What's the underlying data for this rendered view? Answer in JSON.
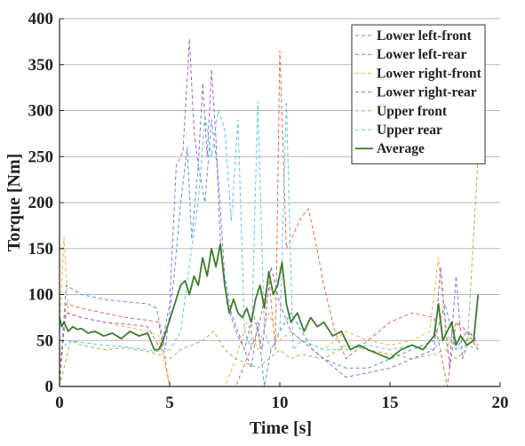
{
  "chart_data": {
    "type": "line",
    "title": "",
    "xlabel": "Time [s]",
    "ylabel": "Torque [Nm]",
    "xlim": [
      0,
      20
    ],
    "ylim": [
      0,
      400
    ],
    "x_ticks": [
      0,
      5,
      10,
      15,
      20
    ],
    "y_ticks": [
      0,
      50,
      100,
      150,
      200,
      250,
      300,
      350,
      400
    ],
    "x_tick_labels": [
      "0",
      "5",
      "10",
      "15",
      "20"
    ],
    "y_tick_labels": [
      "0",
      "50",
      "100",
      "150",
      "200",
      "250",
      "300",
      "350",
      "400"
    ],
    "grid": "horizontal",
    "legend_position": "top-right",
    "series": [
      {
        "name": "Lower left-front",
        "color": "#5b8fd9",
        "dashed": true,
        "x": [
          0,
          0.3,
          1,
          2,
          3,
          4,
          4.4,
          4.8,
          5.2,
          5.5,
          5.8,
          6.0,
          6.3,
          6.6,
          6.9,
          7.2,
          7.5,
          7.8,
          8.1,
          8.4,
          8.7,
          9.0,
          9.3,
          9.6,
          10.0,
          10.5,
          11.0,
          11.5,
          12.0,
          12.5,
          13,
          14,
          15,
          16,
          17,
          17.5,
          18,
          18.5,
          19
        ],
        "y": [
          0,
          110,
          100,
          95,
          92,
          90,
          85,
          40,
          120,
          200,
          260,
          160,
          240,
          200,
          290,
          230,
          120,
          80,
          60,
          40,
          20,
          70,
          0,
          40,
          60,
          80,
          60,
          40,
          30,
          25,
          20,
          20,
          30,
          40,
          50,
          90,
          40,
          60,
          50
        ]
      },
      {
        "name": "Lower left-rear",
        "color": "#e0694a",
        "dashed": true,
        "x": [
          0,
          0.3,
          1,
          2,
          3,
          4,
          4.5,
          5,
          5.5,
          6,
          6.5,
          7,
          7.5,
          8,
          8.5,
          9,
          9.5,
          9.8,
          10.0,
          10.3,
          10.7,
          11.0,
          11.3,
          11.6,
          12,
          12.5,
          13,
          14,
          15,
          16,
          17,
          17.6,
          18,
          18.5,
          19
        ],
        "y": [
          0,
          90,
          85,
          80,
          75,
          72,
          70,
          0,
          0,
          0,
          0,
          0,
          0,
          0,
          30,
          60,
          120,
          40,
          365,
          150,
          170,
          185,
          193,
          160,
          110,
          60,
          30,
          50,
          70,
          80,
          75,
          0,
          70,
          60,
          40
        ]
      },
      {
        "name": "Lower right-front",
        "color": "#e8b93a",
        "dashed": true,
        "x": [
          0,
          0.2,
          0.4,
          1,
          2,
          3,
          4,
          4.5,
          5,
          5.5,
          6,
          6.5,
          7,
          7.5,
          8,
          8.5,
          9,
          9.5,
          10,
          10.5,
          11,
          12,
          13,
          14,
          15,
          16,
          16.8,
          17.2,
          17.6,
          18,
          18.4,
          18.8,
          19
        ],
        "y": [
          60,
          162,
          80,
          75,
          70,
          65,
          60,
          55,
          0,
          0,
          0,
          0,
          0,
          0,
          30,
          70,
          40,
          80,
          50,
          60,
          50,
          40,
          60,
          50,
          45,
          50,
          60,
          140,
          40,
          70,
          55,
          50,
          40
        ]
      },
      {
        "name": "Lower right-rear",
        "color": "#9b66c9",
        "dashed": true,
        "x": [
          0,
          0.3,
          1,
          2,
          3,
          4,
          4.6,
          5.0,
          5.3,
          5.6,
          5.9,
          6.1,
          6.3,
          6.5,
          6.7,
          6.9,
          7.1,
          7.3,
          7.6,
          8.0,
          8.4,
          8.8,
          9.2,
          9.6,
          10.0,
          10.5,
          11,
          11.5,
          12,
          12.5,
          13,
          14,
          15,
          16,
          17,
          17.3,
          17.7,
          18.0,
          18.3,
          18.6,
          19
        ],
        "y": [
          20,
          80,
          75,
          70,
          68,
          65,
          40,
          90,
          240,
          255,
          378,
          280,
          240,
          330,
          250,
          345,
          270,
          160,
          90,
          60,
          40,
          80,
          40,
          130,
          90,
          60,
          50,
          40,
          30,
          20,
          10,
          15,
          20,
          30,
          40,
          130,
          20,
          120,
          30,
          60,
          45
        ]
      },
      {
        "name": "Upper front",
        "color": "#8fbf55",
        "dashed": true,
        "x": [
          0,
          0.5,
          1,
          2,
          3,
          4,
          4.5,
          5,
          5.5,
          6,
          6.5,
          7,
          7.5,
          8,
          8.5,
          9,
          9.5,
          10,
          10.5,
          11,
          12,
          13,
          14,
          15,
          16,
          17,
          17.5,
          18,
          18.5,
          19
        ],
        "y": [
          0,
          50,
          45,
          40,
          42,
          38,
          35,
          30,
          40,
          45,
          50,
          60,
          40,
          30,
          25,
          20,
          30,
          40,
          30,
          35,
          30,
          45,
          40,
          35,
          30,
          35,
          40,
          30,
          40,
          250
        ]
      },
      {
        "name": "Upper rear",
        "color": "#5fc9d9",
        "dashed": true,
        "x": [
          0,
          0.5,
          1,
          2,
          3,
          4,
          4.5,
          5,
          5.5,
          6,
          6.3,
          6.6,
          6.9,
          7.2,
          7.5,
          7.8,
          8.1,
          8.4,
          8.7,
          9.0,
          9.3,
          9.6,
          10.0,
          10.3,
          10.6,
          11.0,
          11.5,
          12,
          13,
          14,
          15,
          16,
          17,
          17.5,
          18,
          18.5,
          19
        ],
        "y": [
          40,
          50,
          48,
          45,
          43,
          40,
          38,
          40,
          60,
          150,
          200,
          295,
          250,
          300,
          280,
          180,
          290,
          60,
          40,
          310,
          60,
          40,
          60,
          310,
          40,
          50,
          45,
          40,
          40,
          45,
          40,
          45,
          40,
          60,
          40,
          45,
          40
        ]
      },
      {
        "name": "Average",
        "color": "#3e7d2b",
        "dashed": false,
        "x": [
          0,
          0.1,
          0.2,
          0.4,
          0.6,
          0.8,
          1.0,
          1.3,
          1.6,
          2.0,
          2.4,
          2.8,
          3.2,
          3.6,
          4.0,
          4.3,
          4.5,
          4.7,
          4.9,
          5.1,
          5.3,
          5.5,
          5.7,
          5.9,
          6.1,
          6.3,
          6.5,
          6.7,
          6.9,
          7.1,
          7.3,
          7.5,
          7.7,
          7.9,
          8.1,
          8.3,
          8.5,
          8.7,
          8.9,
          9.1,
          9.3,
          9.5,
          9.7,
          9.9,
          10.1,
          10.3,
          10.5,
          10.8,
          11.1,
          11.4,
          11.7,
          12.0,
          12.4,
          12.8,
          13.2,
          13.6,
          14.0,
          14.5,
          15.0,
          15.5,
          16.0,
          16.5,
          17.0,
          17.2,
          17.4,
          17.6,
          17.8,
          18.0,
          18.2,
          18.5,
          18.8,
          19.0
        ],
        "y": [
          75,
          65,
          70,
          60,
          65,
          62,
          63,
          58,
          60,
          55,
          58,
          52,
          60,
          55,
          58,
          40,
          40,
          50,
          65,
          80,
          95,
          110,
          115,
          100,
          120,
          110,
          140,
          120,
          150,
          130,
          155,
          110,
          80,
          95,
          80,
          75,
          85,
          70,
          95,
          110,
          85,
          125,
          100,
          110,
          135,
          90,
          70,
          80,
          60,
          75,
          65,
          70,
          55,
          60,
          40,
          45,
          40,
          35,
          30,
          40,
          45,
          40,
          55,
          90,
          50,
          60,
          70,
          45,
          55,
          45,
          50,
          100
        ]
      }
    ]
  }
}
